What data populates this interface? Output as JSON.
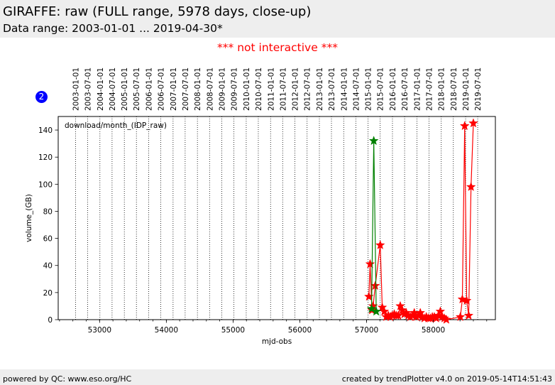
{
  "header": {
    "title": "GIRAFFE: raw (FULL range, 5978 days, close-up)",
    "subtitle": "Data range: 2003-01-01 ... 2019-04-30*"
  },
  "notice": "*** not interactive ***",
  "badge": "2",
  "footer": {
    "left": "powered by QC: www.eso.org/HC",
    "right": "created by trendPlotter v4.0 on 2019-05-14T14:51:43"
  },
  "colors": {
    "series_red": "#ff0000",
    "series_green": "#008000",
    "notice": "#ff0000",
    "badge": "#0000ff",
    "band": "#eeeeee"
  },
  "chart_data": {
    "type": "line",
    "xlabel": "mjd-obs",
    "ylabel": "volume_(GB)",
    "annotation": "download/month_(IDP_raw)",
    "xlim": [
      52380,
      58930
    ],
    "ylim": [
      0,
      150
    ],
    "xticks": [
      53000,
      54000,
      55000,
      56000,
      57000,
      58000
    ],
    "yticks": [
      0,
      20,
      40,
      60,
      80,
      100,
      120,
      140
    ],
    "date_lines": [
      {
        "label": "2003-01-01",
        "mjd": 52640
      },
      {
        "label": "2003-07-01",
        "mjd": 52821
      },
      {
        "label": "2004-01-01",
        "mjd": 53005
      },
      {
        "label": "2004-07-01",
        "mjd": 53187
      },
      {
        "label": "2005-01-01",
        "mjd": 53371
      },
      {
        "label": "2005-07-01",
        "mjd": 53552
      },
      {
        "label": "2006-01-01",
        "mjd": 53736
      },
      {
        "label": "2006-07-01",
        "mjd": 53917
      },
      {
        "label": "2007-01-01",
        "mjd": 54101
      },
      {
        "label": "2007-07-01",
        "mjd": 54282
      },
      {
        "label": "2008-01-01",
        "mjd": 54466
      },
      {
        "label": "2008-07-01",
        "mjd": 54648
      },
      {
        "label": "2009-01-01",
        "mjd": 54832
      },
      {
        "label": "2009-07-01",
        "mjd": 55013
      },
      {
        "label": "2010-01-01",
        "mjd": 55197
      },
      {
        "label": "2010-07-01",
        "mjd": 55378
      },
      {
        "label": "2011-01-01",
        "mjd": 55562
      },
      {
        "label": "2011-07-01",
        "mjd": 55743
      },
      {
        "label": "2012-01-01",
        "mjd": 55927
      },
      {
        "label": "2012-07-01",
        "mjd": 56109
      },
      {
        "label": "2013-01-01",
        "mjd": 56293
      },
      {
        "label": "2013-07-01",
        "mjd": 56474
      },
      {
        "label": "2014-01-01",
        "mjd": 56658
      },
      {
        "label": "2014-07-01",
        "mjd": 56839
      },
      {
        "label": "2015-01-01",
        "mjd": 57023
      },
      {
        "label": "2015-07-01",
        "mjd": 57204
      },
      {
        "label": "2016-01-01",
        "mjd": 57388
      },
      {
        "label": "2016-07-01",
        "mjd": 57570
      },
      {
        "label": "2017-01-01",
        "mjd": 57754
      },
      {
        "label": "2017-07-01",
        "mjd": 57935
      },
      {
        "label": "2018-01-01",
        "mjd": 58119
      },
      {
        "label": "2018-07-01",
        "mjd": 58300
      },
      {
        "label": "2019-01-01",
        "mjd": 58484
      },
      {
        "label": "2019-07-01",
        "mjd": 58665
      }
    ],
    "series": [
      {
        "color": "#ff0000",
        "marker": "star",
        "x": [
          57035,
          57053,
          57080,
          57098,
          57130,
          57205,
          57235,
          57265,
          57295,
          57325,
          57355,
          57385,
          57415,
          57445,
          57475,
          57505,
          57535,
          57565,
          57595,
          57625,
          57655,
          57685,
          57715,
          57745,
          57775,
          57805,
          57835,
          57865,
          57895,
          57925,
          57955,
          57985,
          58015,
          58045,
          58075,
          58105,
          58135,
          58165,
          58195,
          58405,
          58435,
          58470,
          58500,
          58530,
          58565,
          58600
        ],
        "y": [
          17,
          41,
          7,
          10,
          25,
          55,
          9,
          6,
          2,
          3,
          2,
          3,
          4,
          3,
          3,
          10,
          7,
          4,
          5,
          3,
          2,
          3,
          5,
          2,
          3,
          5,
          2,
          1,
          2,
          1,
          1,
          2,
          2,
          1,
          3,
          6,
          2,
          1,
          0,
          2,
          15,
          143,
          14,
          3,
          98,
          145
        ]
      },
      {
        "color": "#008000",
        "marker": "star",
        "x": [
          57075,
          57108,
          57145
        ],
        "y": [
          8,
          132,
          6
        ]
      }
    ]
  }
}
